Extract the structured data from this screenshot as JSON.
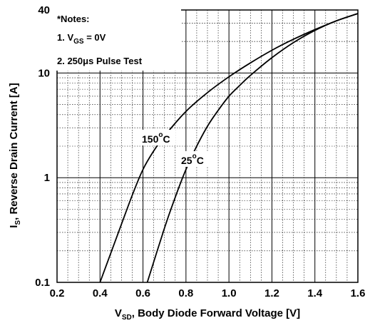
{
  "chart_data": {
    "type": "line",
    "x_scale": "linear",
    "y_scale": "log",
    "xlim": [
      0.2,
      1.6
    ],
    "ylim": [
      0.1,
      40
    ],
    "x_ticks": [
      "0.2",
      "0.4",
      "0.6",
      "0.8",
      "1.0",
      "1.2",
      "1.4",
      "1.6"
    ],
    "y_ticks": [
      "0.1",
      "1",
      "10",
      "40"
    ],
    "xlabel": {
      "main": "V",
      "sub": "SD",
      "rest": ", Body Diode Forward Voltage [V]"
    },
    "ylabel": {
      "main": "I",
      "sub": "S",
      "rest": ", Reverse Drain Current [A]"
    },
    "notes": {
      "title": "*Notes:",
      "line1": {
        "pre": "1. V",
        "sub": "GS",
        "post": " = 0V"
      },
      "line2": {
        "pre": "2. 250",
        "mu": "μ",
        "post": "s Pulse Test"
      }
    },
    "series": [
      {
        "name": {
          "main": "150",
          "sup": "o",
          "rest": "C"
        },
        "x": [
          0.4,
          0.45,
          0.5,
          0.55,
          0.6,
          0.65,
          0.7,
          0.8,
          0.9,
          1.0,
          1.1,
          1.2,
          1.3,
          1.4,
          1.5,
          1.6
        ],
        "y": [
          0.1,
          0.19,
          0.36,
          0.68,
          1.2,
          1.8,
          2.5,
          4.3,
          6.5,
          9.2,
          12.5,
          16.5,
          21.0,
          26.0,
          31.5,
          37.0
        ]
      },
      {
        "name": {
          "main": "25",
          "sup": "o",
          "rest": "C"
        },
        "x": [
          0.62,
          0.7,
          0.75,
          0.8,
          0.85,
          0.9,
          0.95,
          1.0,
          1.05,
          1.1,
          1.2,
          1.3,
          1.4,
          1.5,
          1.6
        ],
        "y": [
          0.1,
          0.33,
          0.65,
          1.2,
          2.0,
          3.1,
          4.4,
          6.0,
          7.6,
          9.5,
          14.0,
          19.5,
          25.5,
          31.5,
          37.0
        ]
      }
    ],
    "grid": true,
    "colors": {
      "line": "#000000",
      "grid": "#000000",
      "background": "#ffffff"
    }
  }
}
